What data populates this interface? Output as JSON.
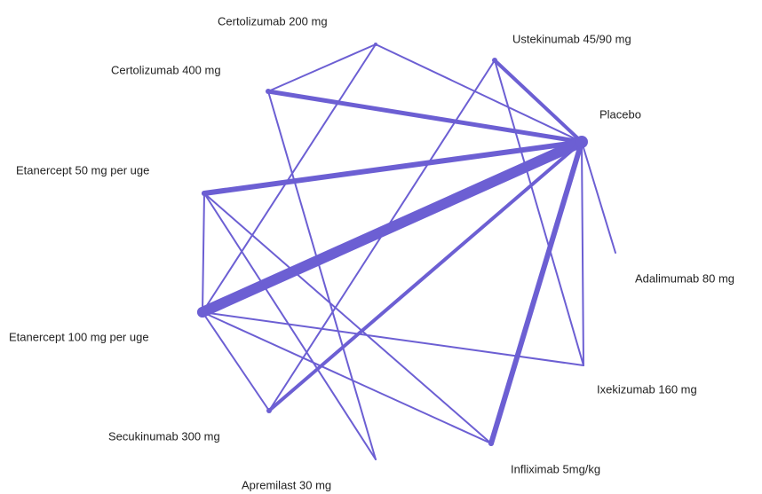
{
  "nodes": [
    {
      "label": "Placebo"
    },
    {
      "label": "Certolizumab 200 mg"
    },
    {
      "label": "Ustekinumab 45/90 mg"
    },
    {
      "label": "Certolizumab 400 mg"
    },
    {
      "label": "Etanercept 50 mg per uge"
    },
    {
      "label": "Etanercept 100 mg per uge"
    },
    {
      "label": "Adalimumab 80 mg"
    },
    {
      "label": "Ixekizumab  160 mg"
    },
    {
      "label": "Secukinumab 300 mg"
    },
    {
      "label": "Infliximab 5mg/kg"
    },
    {
      "label": "Apremilast 30 mg"
    }
  ]
}
